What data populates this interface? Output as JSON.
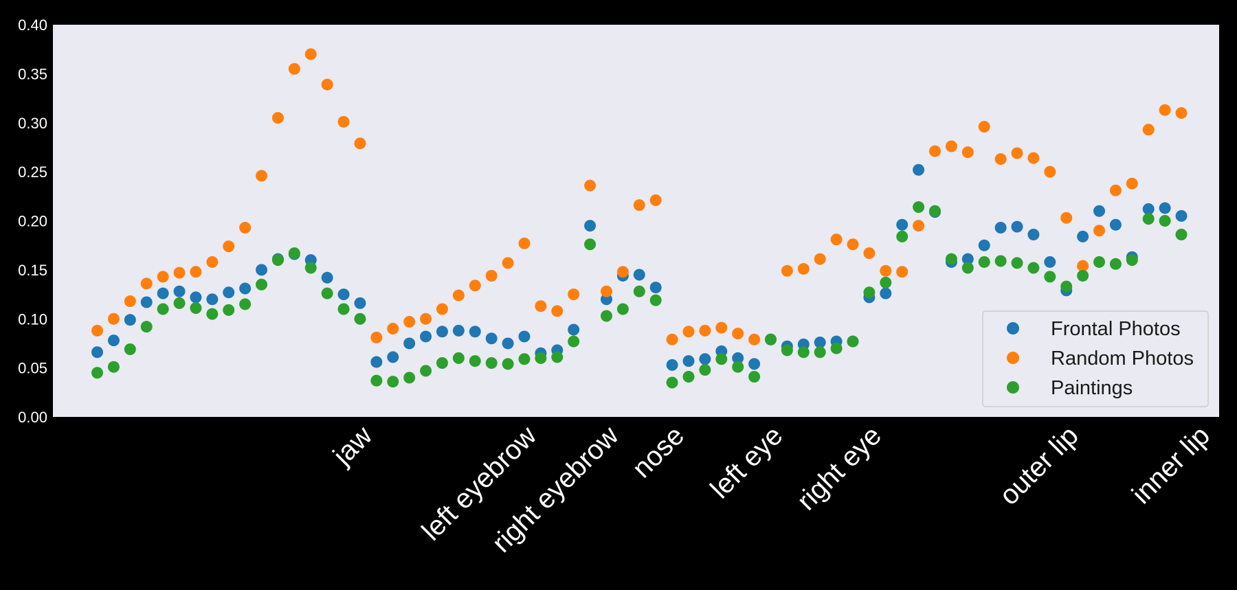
{
  "chart_data": {
    "type": "scatter",
    "background": "#eaeaf2",
    "ylim": [
      0,
      0.4
    ],
    "yticks": [
      "0.00",
      "0.05",
      "0.10",
      "0.15",
      "0.20",
      "0.25",
      "0.30",
      "0.35",
      "0.40"
    ],
    "x_range": [
      -2.7,
      68.3
    ],
    "categories": [
      {
        "label": "jaw",
        "x": 16
      },
      {
        "label": "left eyebrow",
        "x": 26
      },
      {
        "label": "right eyebrow",
        "x": 31
      },
      {
        "label": "nose",
        "x": 35
      },
      {
        "label": "left eye",
        "x": 41
      },
      {
        "label": "right eye",
        "x": 47
      },
      {
        "label": "outer lip",
        "x": 59
      },
      {
        "label": "inner lip",
        "x": 67
      }
    ],
    "legend": {
      "position": "lower right"
    },
    "series": [
      {
        "name": "Frontal Photos",
        "color": "#1f77b4",
        "values": [
          0.066,
          0.078,
          0.099,
          0.117,
          0.126,
          0.128,
          0.122,
          0.12,
          0.127,
          0.131,
          0.15,
          0.161,
          0.166,
          0.16,
          0.142,
          0.125,
          0.116,
          0.056,
          0.061,
          0.075,
          0.082,
          0.087,
          0.088,
          0.087,
          0.08,
          0.075,
          0.082,
          0.065,
          0.068,
          0.089,
          0.195,
          0.12,
          0.144,
          0.145,
          0.132,
          0.053,
          0.057,
          0.059,
          0.067,
          0.06,
          0.054,
          0.079,
          0.072,
          0.074,
          0.076,
          0.077,
          0.077,
          0.122,
          0.126,
          0.196,
          0.252,
          0.209,
          0.158,
          0.161,
          0.175,
          0.193,
          0.194,
          0.186,
          0.158,
          0.129,
          0.184,
          0.21,
          0.196,
          0.163,
          0.212,
          0.213,
          0.205
        ]
      },
      {
        "name": "Random Photos",
        "color": "#ff7f0e",
        "values": [
          0.088,
          0.1,
          0.118,
          0.136,
          0.143,
          0.147,
          0.148,
          0.158,
          0.174,
          0.193,
          0.246,
          0.305,
          0.355,
          0.37,
          0.339,
          0.301,
          0.279,
          0.081,
          0.09,
          0.097,
          0.1,
          0.11,
          0.124,
          0.134,
          0.144,
          0.157,
          0.177,
          0.113,
          0.108,
          0.125,
          0.236,
          0.128,
          0.148,
          0.216,
          0.221,
          0.079,
          0.087,
          0.088,
          0.091,
          0.085,
          0.079,
          null,
          0.149,
          0.151,
          0.161,
          0.181,
          0.176,
          0.167,
          0.149,
          0.148,
          0.195,
          0.271,
          0.276,
          0.27,
          0.296,
          0.263,
          0.269,
          0.264,
          0.25,
          0.203,
          0.154,
          0.19,
          0.231,
          0.238,
          0.293,
          0.313,
          0.31
        ]
      },
      {
        "name": "Paintings",
        "color": "#2ca02c",
        "values": [
          0.045,
          0.051,
          0.069,
          0.092,
          0.11,
          0.116,
          0.111,
          0.105,
          0.109,
          0.115,
          0.135,
          0.16,
          0.167,
          0.152,
          0.126,
          0.11,
          0.1,
          0.037,
          0.036,
          0.04,
          0.047,
          0.055,
          0.06,
          0.057,
          0.055,
          0.054,
          0.059,
          0.06,
          0.061,
          0.077,
          0.176,
          0.103,
          0.11,
          0.128,
          0.119,
          0.035,
          0.041,
          0.048,
          0.059,
          0.051,
          0.041,
          0.079,
          0.068,
          0.066,
          0.066,
          0.07,
          0.077,
          0.127,
          0.137,
          0.184,
          0.214,
          0.21,
          0.161,
          0.152,
          0.158,
          0.159,
          0.157,
          0.152,
          0.143,
          0.133,
          0.144,
          0.158,
          0.156,
          0.16,
          0.202,
          0.2,
          0.186
        ]
      }
    ]
  }
}
